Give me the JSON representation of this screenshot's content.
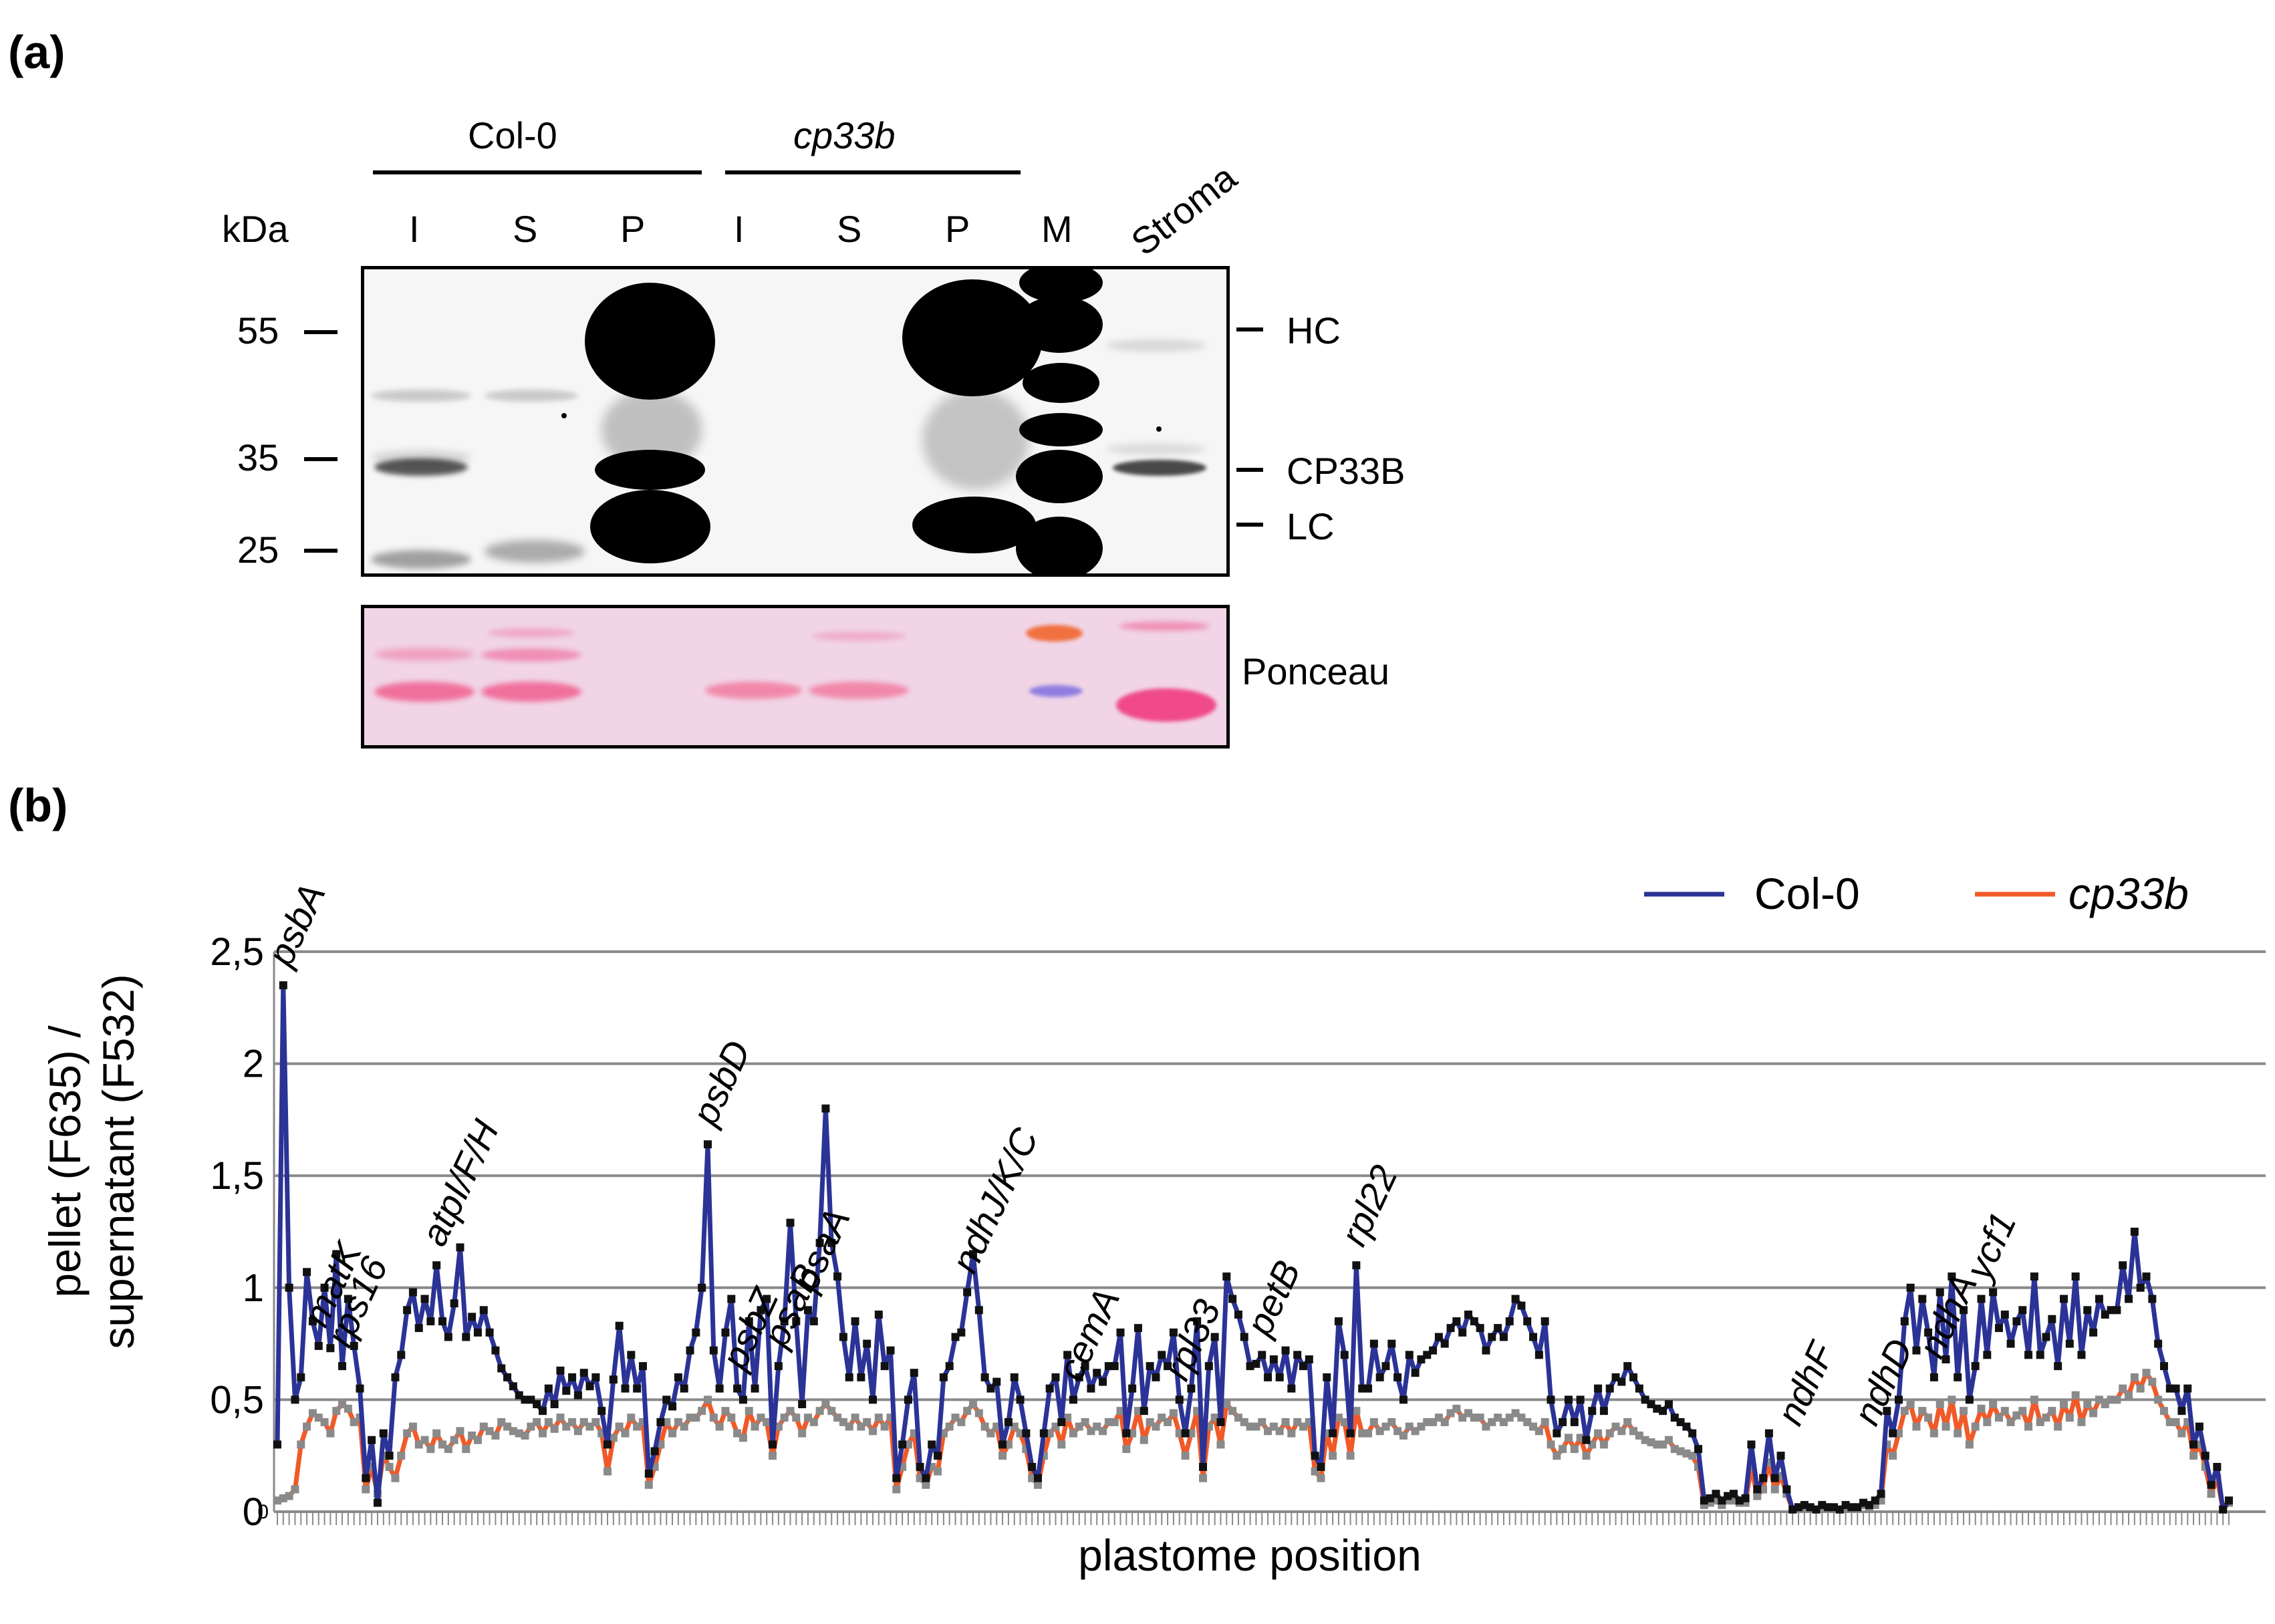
{
  "panel_a": {
    "label": "(a)",
    "groups": [
      "Col-0",
      "cp33b"
    ],
    "kda_label": "kDa",
    "lanes": [
      "I",
      "S",
      "P",
      "I",
      "S",
      "P",
      "M"
    ],
    "stroma_label": "Stroma",
    "markers": [
      "55",
      "35",
      "25"
    ],
    "bands": [
      "HC",
      "CP33B",
      "LC"
    ],
    "ponceau_label": "Ponceau"
  },
  "panel_b": {
    "label": "(b)"
  },
  "chart_data": {
    "type": "line",
    "title": "",
    "xlabel": "plastome position",
    "ylabel_line1": "pellet (F635) /",
    "ylabel_line2": "supernatant (F532)",
    "ylim": [
      0,
      2.5
    ],
    "yticks": [
      "0",
      "0,5",
      "1",
      "1,5",
      "2",
      "2,5"
    ],
    "y_zero_minor": "0",
    "legend_position": "top-right",
    "annotations": [
      {
        "text": "psbA",
        "x": 1
      },
      {
        "text": "matK",
        "x": 7
      },
      {
        "text": "rps16",
        "x": 11
      },
      {
        "text": "atpI/F/H",
        "x": 27
      },
      {
        "text": "psbD",
        "x": 73
      },
      {
        "text": "psbZ",
        "x": 78
      },
      {
        "text": "psaB",
        "x": 85
      },
      {
        "text": "psaA",
        "x": 90
      },
      {
        "text": "ndhJ/K/C",
        "x": 117
      },
      {
        "text": "cemA",
        "x": 135
      },
      {
        "text": "rpl33",
        "x": 153
      },
      {
        "text": "petB",
        "x": 167
      },
      {
        "text": "rpl22",
        "x": 183
      },
      {
        "text": "ndhF",
        "x": 257
      },
      {
        "text": "ndhD",
        "x": 270
      },
      {
        "text": "ndhA",
        "x": 281
      },
      {
        "text": "ycf1",
        "x": 289
      }
    ],
    "series": [
      {
        "name": "Col-0",
        "color": "#2b3396",
        "marker_color": "#111111",
        "values": [
          0.3,
          2.35,
          1.0,
          0.5,
          0.6,
          1.07,
          0.85,
          0.74,
          1.0,
          0.73,
          1.15,
          0.65,
          0.95,
          0.74,
          0.55,
          0.15,
          0.32,
          0.04,
          0.35,
          0.25,
          0.6,
          0.7,
          0.9,
          0.98,
          0.82,
          0.95,
          0.85,
          1.1,
          0.85,
          0.78,
          0.93,
          1.18,
          0.78,
          0.87,
          0.8,
          0.9,
          0.8,
          0.72,
          0.64,
          0.6,
          0.56,
          0.52,
          0.5,
          0.5,
          0.48,
          0.45,
          0.55,
          0.48,
          0.63,
          0.54,
          0.6,
          0.52,
          0.62,
          0.56,
          0.6,
          0.45,
          0.3,
          0.59,
          0.83,
          0.55,
          0.7,
          0.55,
          0.65,
          0.17,
          0.27,
          0.4,
          0.5,
          0.47,
          0.6,
          0.55,
          0.72,
          0.8,
          1.0,
          1.64,
          0.72,
          0.55,
          0.8,
          0.95,
          0.55,
          0.5,
          0.85,
          0.55,
          0.9,
          0.95,
          0.3,
          0.65,
          0.85,
          1.29,
          0.85,
          0.48,
          0.9,
          0.85,
          1.2,
          1.8,
          1.2,
          1.05,
          0.78,
          0.6,
          0.85,
          0.6,
          0.75,
          0.5,
          0.88,
          0.65,
          0.72,
          0.15,
          0.3,
          0.5,
          0.62,
          0.2,
          0.15,
          0.3,
          0.25,
          0.6,
          0.65,
          0.78,
          0.8,
          0.98,
          1.15,
          0.9,
          0.6,
          0.55,
          0.58,
          0.3,
          0.4,
          0.6,
          0.5,
          0.35,
          0.2,
          0.15,
          0.35,
          0.55,
          0.6,
          0.4,
          0.7,
          0.5,
          0.6,
          0.65,
          0.55,
          0.62,
          0.58,
          0.65,
          0.65,
          0.8,
          0.35,
          0.55,
          0.82,
          0.45,
          0.65,
          0.6,
          0.7,
          0.65,
          0.8,
          0.5,
          0.35,
          0.55,
          0.85,
          0.2,
          0.65,
          0.78,
          0.4,
          1.05,
          0.95,
          0.88,
          0.78,
          0.65,
          0.66,
          0.7,
          0.6,
          0.68,
          0.6,
          0.72,
          0.55,
          0.7,
          0.65,
          0.68,
          0.25,
          0.2,
          0.6,
          0.35,
          0.85,
          0.7,
          0.35,
          1.1,
          0.55,
          0.55,
          0.75,
          0.6,
          0.65,
          0.75,
          0.6,
          0.5,
          0.7,
          0.62,
          0.68,
          0.7,
          0.72,
          0.78,
          0.75,
          0.82,
          0.85,
          0.8,
          0.88,
          0.85,
          0.82,
          0.72,
          0.78,
          0.82,
          0.78,
          0.85,
          0.95,
          0.92,
          0.85,
          0.78,
          0.7,
          0.85,
          0.5,
          0.35,
          0.4,
          0.5,
          0.4,
          0.5,
          0.32,
          0.45,
          0.55,
          0.45,
          0.55,
          0.6,
          0.58,
          0.65,
          0.6,
          0.55,
          0.5,
          0.48,
          0.46,
          0.45,
          0.48,
          0.42,
          0.4,
          0.38,
          0.35,
          0.28,
          0.05,
          0.06,
          0.08,
          0.05,
          0.07,
          0.08,
          0.05,
          0.06,
          0.3,
          0.1,
          0.15,
          0.35,
          0.15,
          0.25,
          0.1,
          0.01,
          0.02,
          0.03,
          0.02,
          0.01,
          0.03,
          0.02,
          0.02,
          0.01,
          0.03,
          0.02,
          0.02,
          0.04,
          0.03,
          0.05,
          0.08,
          0.45,
          0.35,
          0.5,
          0.85,
          1.0,
          0.72,
          0.95,
          0.8,
          0.6,
          0.98,
          0.68,
          1.05,
          0.6,
          0.9,
          0.5,
          0.65,
          0.95,
          0.7,
          0.98,
          0.82,
          0.88,
          0.75,
          0.85,
          0.9,
          0.7,
          1.05,
          0.7,
          0.78,
          0.86,
          0.65,
          0.95,
          0.75,
          1.05,
          0.7,
          0.9,
          0.8,
          0.95,
          0.88,
          0.9,
          0.9,
          1.1,
          0.95,
          1.25,
          1.0,
          1.05,
          0.95,
          0.75,
          0.65,
          0.55,
          0.55,
          0.45,
          0.55,
          0.3,
          0.38,
          0.25,
          0.12,
          0.2,
          0.01,
          0.05
        ]
      },
      {
        "name": "cp33b",
        "color": "#f05a28",
        "marker_color": "#8a8a8a",
        "values": [
          0.05,
          0.06,
          0.07,
          0.1,
          0.3,
          0.38,
          0.44,
          0.42,
          0.4,
          0.35,
          0.45,
          0.48,
          0.46,
          0.4,
          0.42,
          0.1,
          0.2,
          0.08,
          0.25,
          0.2,
          0.15,
          0.25,
          0.35,
          0.38,
          0.3,
          0.32,
          0.28,
          0.35,
          0.3,
          0.28,
          0.32,
          0.36,
          0.28,
          0.34,
          0.32,
          0.38,
          0.36,
          0.34,
          0.4,
          0.38,
          0.36,
          0.35,
          0.34,
          0.38,
          0.4,
          0.35,
          0.4,
          0.37,
          0.42,
          0.38,
          0.4,
          0.36,
          0.4,
          0.38,
          0.4,
          0.35,
          0.18,
          0.33,
          0.38,
          0.35,
          0.42,
          0.38,
          0.4,
          0.12,
          0.2,
          0.3,
          0.4,
          0.35,
          0.4,
          0.38,
          0.42,
          0.42,
          0.45,
          0.5,
          0.42,
          0.38,
          0.45,
          0.42,
          0.35,
          0.33,
          0.45,
          0.38,
          0.42,
          0.4,
          0.25,
          0.38,
          0.42,
          0.45,
          0.42,
          0.35,
          0.42,
          0.4,
          0.45,
          0.48,
          0.45,
          0.42,
          0.4,
          0.38,
          0.42,
          0.38,
          0.4,
          0.36,
          0.42,
          0.38,
          0.42,
          0.1,
          0.2,
          0.3,
          0.35,
          0.15,
          0.12,
          0.2,
          0.18,
          0.35,
          0.38,
          0.42,
          0.4,
          0.45,
          0.48,
          0.44,
          0.38,
          0.35,
          0.38,
          0.25,
          0.3,
          0.38,
          0.35,
          0.28,
          0.15,
          0.12,
          0.25,
          0.35,
          0.38,
          0.3,
          0.42,
          0.35,
          0.38,
          0.4,
          0.36,
          0.38,
          0.36,
          0.4,
          0.4,
          0.45,
          0.28,
          0.35,
          0.45,
          0.32,
          0.4,
          0.38,
          0.42,
          0.4,
          0.44,
          0.35,
          0.25,
          0.35,
          0.45,
          0.15,
          0.38,
          0.42,
          0.3,
          0.48,
          0.45,
          0.42,
          0.4,
          0.38,
          0.38,
          0.4,
          0.36,
          0.38,
          0.36,
          0.4,
          0.35,
          0.4,
          0.38,
          0.4,
          0.18,
          0.15,
          0.35,
          0.25,
          0.42,
          0.4,
          0.25,
          0.45,
          0.35,
          0.35,
          0.4,
          0.36,
          0.38,
          0.4,
          0.36,
          0.34,
          0.38,
          0.36,
          0.38,
          0.4,
          0.4,
          0.42,
          0.4,
          0.44,
          0.46,
          0.42,
          0.44,
          0.42,
          0.42,
          0.38,
          0.4,
          0.42,
          0.4,
          0.42,
          0.44,
          0.42,
          0.4,
          0.38,
          0.36,
          0.4,
          0.3,
          0.25,
          0.28,
          0.33,
          0.28,
          0.33,
          0.25,
          0.3,
          0.35,
          0.3,
          0.35,
          0.38,
          0.36,
          0.4,
          0.36,
          0.34,
          0.32,
          0.31,
          0.3,
          0.3,
          0.32,
          0.28,
          0.27,
          0.26,
          0.25,
          0.2,
          0.03,
          0.04,
          0.05,
          0.03,
          0.05,
          0.05,
          0.04,
          0.04,
          0.2,
          0.07,
          0.1,
          0.22,
          0.1,
          0.16,
          0.08,
          0.01,
          0.02,
          0.02,
          0.02,
          0.01,
          0.02,
          0.02,
          0.02,
          0.01,
          0.02,
          0.02,
          0.02,
          0.03,
          0.02,
          0.03,
          0.05,
          0.3,
          0.25,
          0.35,
          0.45,
          0.48,
          0.38,
          0.45,
          0.42,
          0.35,
          0.48,
          0.38,
          0.5,
          0.35,
          0.45,
          0.3,
          0.38,
          0.46,
          0.4,
          0.48,
          0.42,
          0.45,
          0.4,
          0.43,
          0.45,
          0.38,
          0.5,
          0.4,
          0.42,
          0.45,
          0.38,
          0.48,
          0.42,
          0.52,
          0.4,
          0.48,
          0.44,
          0.5,
          0.48,
          0.5,
          0.5,
          0.55,
          0.52,
          0.6,
          0.55,
          0.62,
          0.58,
          0.5,
          0.45,
          0.4,
          0.4,
          0.35,
          0.4,
          0.25,
          0.3,
          0.2,
          0.08,
          0.15,
          0.01,
          0.04
        ]
      }
    ]
  }
}
